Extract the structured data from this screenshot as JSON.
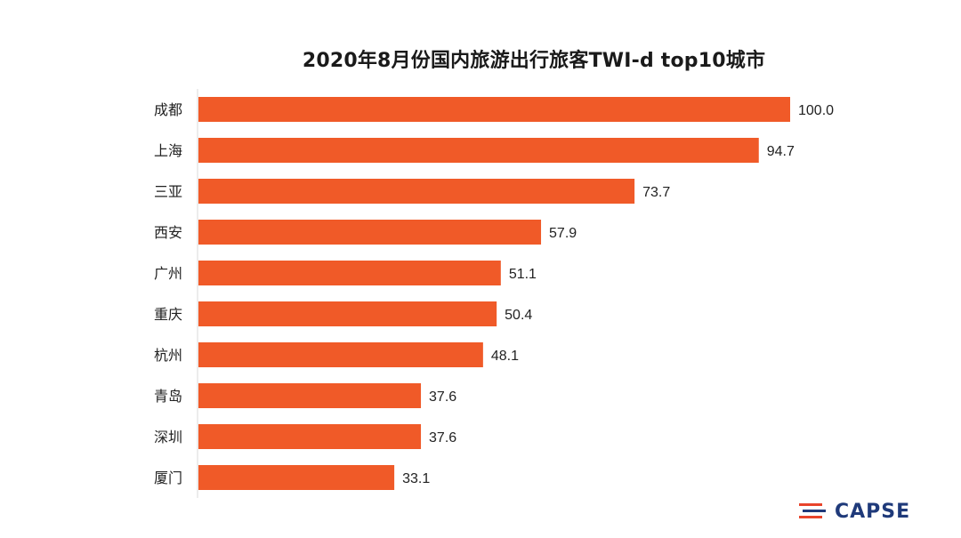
{
  "chart_data": {
    "type": "bar",
    "orientation": "horizontal",
    "title": "2020年8月份国内旅游出行旅客TWI-d top10城市",
    "categories": [
      "成都",
      "上海",
      "三亚",
      "西安",
      "广州",
      "重庆",
      "杭州",
      "青岛",
      "深圳",
      "厦门"
    ],
    "values": [
      100.0,
      94.7,
      73.7,
      57.9,
      51.1,
      50.4,
      48.1,
      37.6,
      37.6,
      33.1
    ],
    "value_labels": [
      "100.0",
      "94.7",
      "73.7",
      "57.9",
      "51.1",
      "50.4",
      "48.1",
      "37.6",
      "37.6",
      "33.1"
    ],
    "xlabel": "",
    "ylabel": "",
    "xlim": [
      0,
      100
    ],
    "grid": false,
    "legend": "none",
    "bar_color": "#F05A28",
    "axis_color": "#d9d9d9"
  },
  "watermark": {
    "text": "CAPSE",
    "color": "#1f3a7a",
    "accent_color": "#E8442B"
  }
}
